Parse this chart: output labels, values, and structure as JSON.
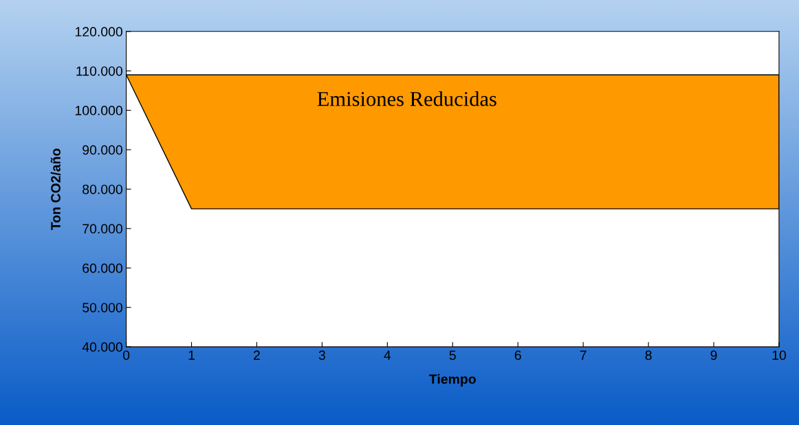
{
  "chart_data": {
    "type": "area",
    "xlabel": "Tiempo",
    "ylabel": "Ton CO2/año",
    "x": [
      0,
      1,
      2,
      3,
      4,
      5,
      6,
      7,
      8,
      9,
      10
    ],
    "series": [
      {
        "color": "#ff9900",
        "values": [
          109000,
          109000,
          109000,
          109000,
          109000,
          109000,
          109000,
          109000,
          109000,
          109000,
          109000
        ]
      },
      {
        "type": "line",
        "color": "#000000",
        "values": [
          109000,
          75000,
          75000,
          75000,
          75000,
          75000,
          75000,
          75000,
          75000,
          75000,
          75000
        ]
      }
    ],
    "xlim": [
      0,
      10
    ],
    "xticks": [
      0,
      1,
      2,
      3,
      4,
      5,
      6,
      7,
      8,
      9,
      10
    ],
    "ylim": [
      40000,
      120000
    ],
    "yticks": [
      {
        "value": 40000,
        "label": "40.000"
      },
      {
        "value": 50000,
        "label": "50.000"
      },
      {
        "value": 60000,
        "label": "60.000"
      },
      {
        "value": 70000,
        "label": "70.000"
      },
      {
        "value": 80000,
        "label": "80.000"
      },
      {
        "value": 90000,
        "label": "90.000"
      },
      {
        "value": 100000,
        "label": "100.000"
      },
      {
        "value": 110000,
        "label": "110.000"
      },
      {
        "value": 120000,
        "label": "120.000"
      }
    ],
    "annotations": [
      "Emisiones Reducidas"
    ],
    "grid": false,
    "legend": false
  }
}
